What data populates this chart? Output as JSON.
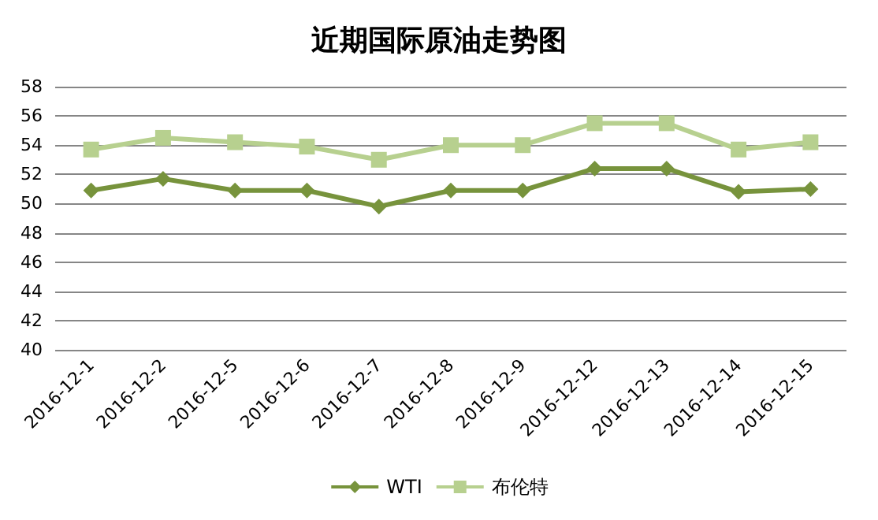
{
  "chart_data": {
    "type": "line",
    "title": "近期国际原油走势图",
    "categories": [
      "2016-12-1",
      "2016-12-2",
      "2016-12-5",
      "2016-12-6",
      "2016-12-7",
      "2016-12-8",
      "2016-12-9",
      "2016-12-12",
      "2016-12-13",
      "2016-12-14",
      "2016-12-15"
    ],
    "series": [
      {
        "name": "WTI",
        "color": "#77933c",
        "marker": "diamond",
        "values": [
          50.9,
          51.7,
          50.9,
          50.9,
          49.8,
          50.9,
          50.9,
          52.4,
          52.4,
          50.8,
          51.0
        ]
      },
      {
        "name": "布伦特",
        "color": "#b7d08f",
        "marker": "square",
        "values": [
          53.7,
          54.5,
          54.2,
          53.9,
          53.0,
          54.0,
          54.0,
          55.5,
          55.5,
          53.7,
          54.2
        ]
      }
    ],
    "ylim": [
      40,
      58
    ],
    "yticks": [
      40,
      42,
      44,
      46,
      48,
      50,
      52,
      54,
      56,
      58
    ],
    "grid": "y",
    "legend": "bottom"
  }
}
